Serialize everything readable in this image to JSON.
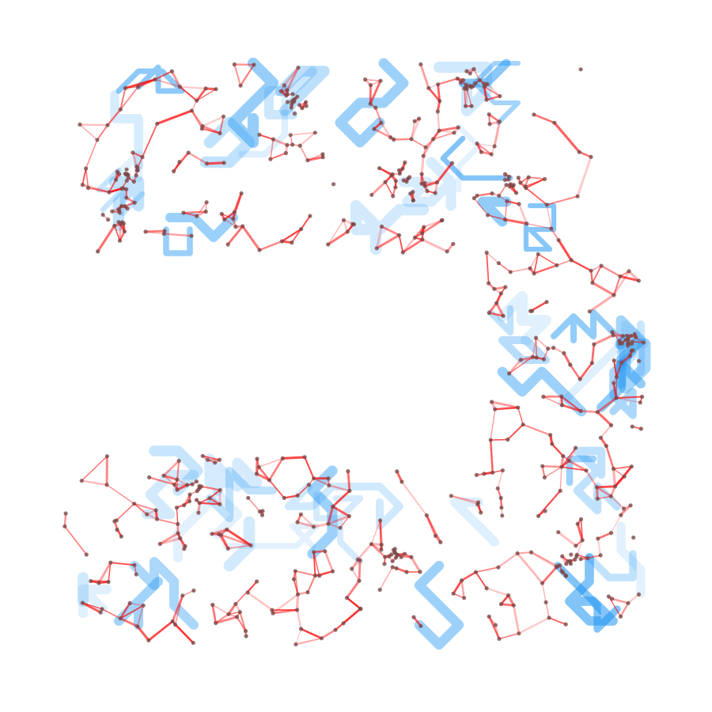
{
  "diagram": {
    "kind": "network-graph-overlay",
    "background": "#ffffff",
    "layers": [
      {
        "role": "grid-paths",
        "color": "#2196f3"
      },
      {
        "role": "edges",
        "color": "#ff0000"
      },
      {
        "role": "nodes",
        "color": "#7a4a4a"
      }
    ]
  }
}
